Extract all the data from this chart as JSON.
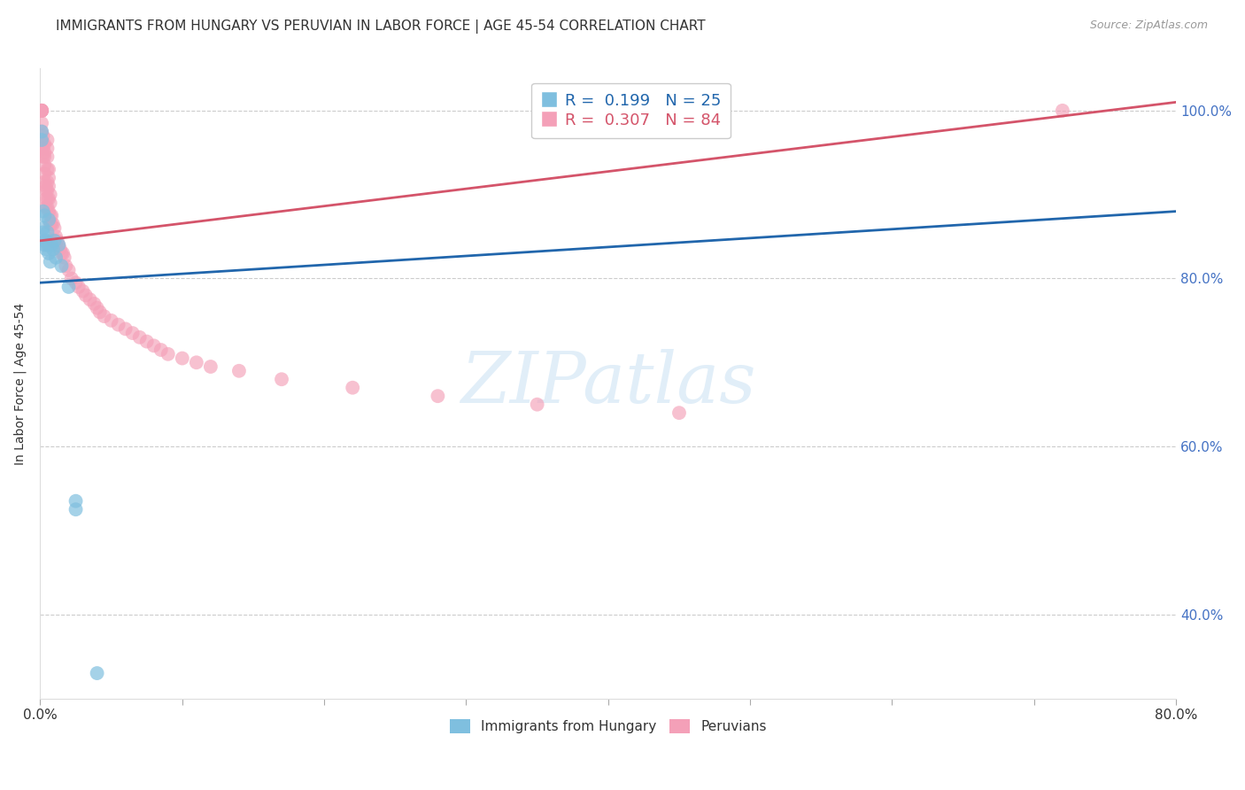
{
  "title": "IMMIGRANTS FROM HUNGARY VS PERUVIAN IN LABOR FORCE | AGE 45-54 CORRELATION CHART",
  "source_text": "Source: ZipAtlas.com",
  "ylabel": "In Labor Force | Age 45-54",
  "xlim": [
    0.0,
    0.8
  ],
  "ylim": [
    0.3,
    1.05
  ],
  "yticks_right": [
    0.4,
    0.6,
    0.8,
    1.0
  ],
  "ytick_right_labels": [
    "40.0%",
    "60.0%",
    "80.0%",
    "100.0%"
  ],
  "xtick_labels": [
    "0.0%",
    "",
    "",
    "",
    "",
    "",
    "",
    "",
    "80.0%"
  ],
  "hungary_x": [
    0.001,
    0.001,
    0.002,
    0.002,
    0.002,
    0.003,
    0.003,
    0.003,
    0.004,
    0.004,
    0.005,
    0.005,
    0.006,
    0.006,
    0.007,
    0.008,
    0.009,
    0.01,
    0.011,
    0.013,
    0.015,
    0.02,
    0.025,
    0.025,
    0.04
  ],
  "hungary_y": [
    0.975,
    0.965,
    0.86,
    0.88,
    0.855,
    0.875,
    0.845,
    0.84,
    0.835,
    0.845,
    0.855,
    0.84,
    0.87,
    0.83,
    0.82,
    0.84,
    0.835,
    0.845,
    0.825,
    0.84,
    0.815,
    0.79,
    0.535,
    0.525,
    0.33
  ],
  "peru_x": [
    0.001,
    0.001,
    0.001,
    0.001,
    0.001,
    0.001,
    0.001,
    0.001,
    0.002,
    0.002,
    0.002,
    0.002,
    0.003,
    0.003,
    0.003,
    0.003,
    0.003,
    0.003,
    0.004,
    0.004,
    0.004,
    0.004,
    0.005,
    0.005,
    0.005,
    0.005,
    0.005,
    0.005,
    0.005,
    0.005,
    0.006,
    0.006,
    0.006,
    0.006,
    0.006,
    0.007,
    0.007,
    0.007,
    0.007,
    0.008,
    0.008,
    0.008,
    0.009,
    0.009,
    0.01,
    0.01,
    0.011,
    0.012,
    0.013,
    0.014,
    0.015,
    0.016,
    0.017,
    0.018,
    0.02,
    0.022,
    0.025,
    0.027,
    0.03,
    0.032,
    0.035,
    0.038,
    0.04,
    0.042,
    0.045,
    0.05,
    0.055,
    0.06,
    0.065,
    0.07,
    0.075,
    0.08,
    0.085,
    0.09,
    0.1,
    0.11,
    0.12,
    0.14,
    0.17,
    0.22,
    0.28,
    0.35,
    0.45,
    0.72
  ],
  "peru_y": [
    1.0,
    1.0,
    1.0,
    1.0,
    1.0,
    1.0,
    0.985,
    0.975,
    0.97,
    0.96,
    0.955,
    0.945,
    0.96,
    0.95,
    0.945,
    0.935,
    0.925,
    0.915,
    0.91,
    0.905,
    0.895,
    0.885,
    0.965,
    0.955,
    0.945,
    0.93,
    0.915,
    0.905,
    0.895,
    0.885,
    0.93,
    0.92,
    0.91,
    0.895,
    0.88,
    0.9,
    0.89,
    0.875,
    0.865,
    0.875,
    0.865,
    0.845,
    0.865,
    0.845,
    0.86,
    0.845,
    0.85,
    0.845,
    0.84,
    0.835,
    0.83,
    0.83,
    0.825,
    0.815,
    0.81,
    0.8,
    0.795,
    0.79,
    0.785,
    0.78,
    0.775,
    0.77,
    0.765,
    0.76,
    0.755,
    0.75,
    0.745,
    0.74,
    0.735,
    0.73,
    0.725,
    0.72,
    0.715,
    0.71,
    0.705,
    0.7,
    0.695,
    0.69,
    0.68,
    0.67,
    0.66,
    0.65,
    0.64,
    1.0
  ],
  "hungary_color": "#7fbfdf",
  "peru_color": "#f4a0b8",
  "hungary_line_color": "#2166ac",
  "peru_line_color": "#d4546a",
  "hungary_R": 0.199,
  "hungary_N": 25,
  "peru_R": 0.307,
  "peru_N": 84,
  "hungary_line_x0": 0.0,
  "hungary_line_y0": 0.795,
  "hungary_line_x1": 0.8,
  "hungary_line_y1": 0.88,
  "peru_line_x0": 0.0,
  "peru_line_y0": 0.845,
  "peru_line_x1": 0.8,
  "peru_line_y1": 1.01,
  "background_color": "#ffffff",
  "grid_color": "#cccccc",
  "watermark": "ZIPatlas",
  "watermark_color": "#cde3f4"
}
